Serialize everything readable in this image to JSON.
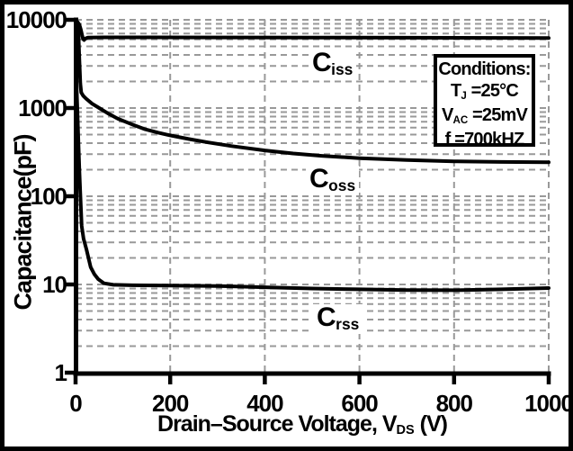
{
  "figure": {
    "background": "#ffffff",
    "frame_color": "#000000"
  },
  "chart_data": {
    "type": "line",
    "x_scale": "linear",
    "y_scale": "log",
    "xlabel": {
      "pre": "Drain–Source Voltage, V",
      "sub": "DS",
      "post": " (V)"
    },
    "ylabel": "Capacitance(pF)",
    "x_axis": {
      "min": 0,
      "max": 1000,
      "ticks": [
        0,
        200,
        400,
        600,
        800,
        1000
      ],
      "tick_labels": [
        "0",
        "200",
        "400",
        "600",
        "800",
        "1000"
      ]
    },
    "y_axis": {
      "min": 1,
      "max": 10000,
      "ticks": [
        10000,
        1000,
        100,
        10,
        1
      ],
      "tick_labels": [
        "10000",
        "1000",
        "100",
        "10",
        "1"
      ],
      "unit": "pF"
    },
    "grid": {
      "color": "#999999",
      "style": "dashed",
      "vertical_lines": [
        200,
        400,
        600,
        800,
        1000
      ],
      "horizontal_lines": "log decades 1-10000 with 2-9 minors, all dashed"
    },
    "line_color": "#000000",
    "series": [
      {
        "name": "Ciss",
        "label": {
          "base": "C",
          "sub": "iss"
        },
        "points": [
          [
            0,
            9800
          ],
          [
            4,
            9500
          ],
          [
            8,
            8800
          ],
          [
            11,
            7800
          ],
          [
            14,
            6600
          ],
          [
            16,
            6050
          ],
          [
            18,
            5900
          ],
          [
            21,
            6150
          ],
          [
            26,
            6300
          ],
          [
            60,
            6320
          ],
          [
            150,
            6320
          ],
          [
            300,
            6310
          ],
          [
            500,
            6290
          ],
          [
            700,
            6260
          ],
          [
            1000,
            6200
          ]
        ]
      },
      {
        "name": "Coss",
        "label": {
          "base": "C",
          "sub": "oss"
        },
        "points": [
          [
            0,
            9700
          ],
          [
            2,
            9300
          ],
          [
            4,
            8500
          ],
          [
            6,
            7000
          ],
          [
            8,
            3600
          ],
          [
            10,
            1900
          ],
          [
            12,
            1500
          ],
          [
            16,
            1380
          ],
          [
            22,
            1280
          ],
          [
            35,
            1120
          ],
          [
            50,
            1000
          ],
          [
            70,
            860
          ],
          [
            90,
            755
          ],
          [
            120,
            650
          ],
          [
            145,
            578
          ],
          [
            175,
            525
          ],
          [
            200,
            490
          ],
          [
            240,
            445
          ],
          [
            280,
            408
          ],
          [
            330,
            370
          ],
          [
            400,
            331
          ],
          [
            460,
            305
          ],
          [
            520,
            287
          ],
          [
            600,
            270
          ],
          [
            700,
            257
          ],
          [
            800,
            249
          ],
          [
            900,
            245
          ],
          [
            1000,
            243
          ]
        ]
      },
      {
        "name": "Crss",
        "label": {
          "base": "C",
          "sub": "rss"
        },
        "points": [
          [
            0,
            2300
          ],
          [
            2,
            1800
          ],
          [
            4,
            900
          ],
          [
            6,
            400
          ],
          [
            8,
            200
          ],
          [
            10,
            105
          ],
          [
            13,
            46
          ],
          [
            17,
            33
          ],
          [
            23,
            25
          ],
          [
            32,
            15.7
          ],
          [
            40,
            13
          ],
          [
            48,
            11.5
          ],
          [
            60,
            10.3
          ],
          [
            80,
            9.9
          ],
          [
            120,
            9.8
          ],
          [
            200,
            9.7
          ],
          [
            300,
            9.6
          ],
          [
            400,
            9.3
          ],
          [
            500,
            9.0
          ],
          [
            600,
            8.8
          ],
          [
            700,
            8.65
          ],
          [
            800,
            8.6
          ],
          [
            900,
            8.8
          ],
          [
            1000,
            9.1
          ]
        ]
      }
    ],
    "conditions_box": {
      "title": "Conditions:",
      "lines": [
        {
          "base": "T",
          "sub": "J",
          "rest": " =25°C"
        },
        {
          "base": "V",
          "sub": "AC",
          "rest": " =25mV"
        },
        {
          "base": "f",
          "sub": "",
          "rest": " =700kHZ"
        }
      ]
    }
  }
}
